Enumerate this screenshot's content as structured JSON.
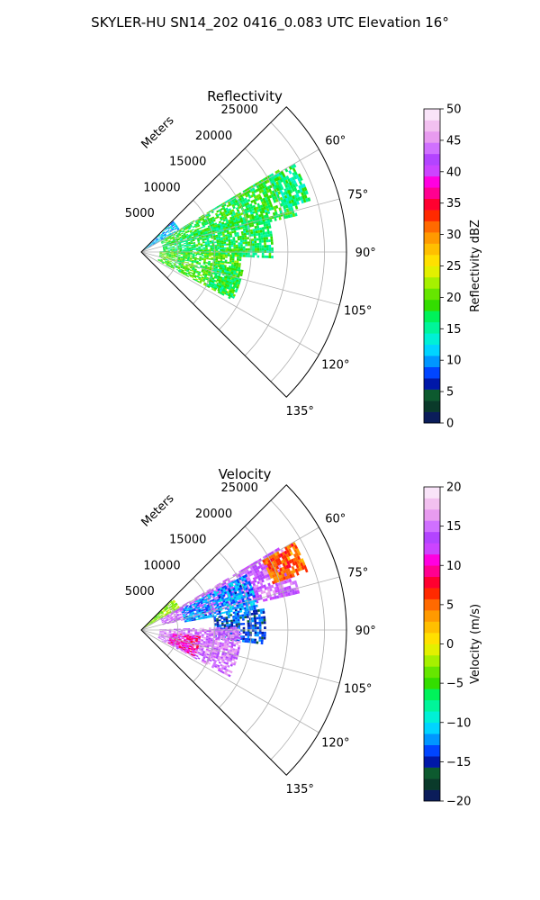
{
  "figure": {
    "title": "SKYLER-HU  SN14_202  0416_0.083 UTC Elevation 16°"
  },
  "chart_data": [
    {
      "type": "heatmap",
      "subtype": "polar-sector",
      "title": "Reflectivity",
      "range_label": "Meters",
      "range_ticks": [
        "5000",
        "10000",
        "15000",
        "20000",
        "25000"
      ],
      "range_values": [
        5000,
        10000,
        15000,
        20000,
        25000
      ],
      "range_max": 28000,
      "azimuth_ticks": [
        "60°",
        "75°",
        "90°",
        "105°",
        "120°",
        "135°"
      ],
      "azimuth_values": [
        60,
        75,
        90,
        105,
        120,
        135
      ],
      "azimuth_range": [
        45,
        135
      ],
      "grid": true,
      "colorbar": {
        "label": "Reflectivity dBZ",
        "vmin": 0,
        "vmax": 50,
        "ticks": [
          "0",
          "5",
          "10",
          "15",
          "20",
          "25",
          "30",
          "35",
          "40",
          "45",
          "50"
        ],
        "tick_values": [
          0,
          5,
          10,
          15,
          20,
          25,
          30,
          35,
          40,
          45,
          50
        ],
        "colors": [
          "#0b1d5a",
          "#0a3a2a",
          "#0d5a2f",
          "#0018a8",
          "#0045ff",
          "#0096ff",
          "#00d4ff",
          "#00f0d6",
          "#00f59a",
          "#00f25a",
          "#33dd00",
          "#66e600",
          "#a6f000",
          "#e3f000",
          "#ffe000",
          "#ffbf00",
          "#ff9a00",
          "#ff6a00",
          "#ff2a00",
          "#ff0030",
          "#ff0090",
          "#ff00e0",
          "#cc44ff",
          "#b344ff",
          "#d070ff",
          "#e89bf0",
          "#f2c0f0",
          "#f9e4f9"
        ]
      },
      "echo_regions": [
        {
          "az_range": [
            59,
            76
          ],
          "r_range": [
            3000,
            22000
          ],
          "value": 18
        },
        {
          "az_range": [
            70,
            92
          ],
          "r_range": [
            3000,
            18000
          ],
          "value": 17
        },
        {
          "az_range": [
            88,
            118
          ],
          "r_range": [
            2500,
            13500
          ],
          "value": 19
        },
        {
          "az_range": [
            100,
            116
          ],
          "r_range": [
            10000,
            14000
          ],
          "value": 17
        },
        {
          "az_range": [
            46,
            60
          ],
          "r_range": [
            0,
            6000
          ],
          "value": 11
        },
        {
          "az_range": [
            60,
            73
          ],
          "r_range": [
            20000,
            24000
          ],
          "value": 16
        }
      ]
    },
    {
      "type": "heatmap",
      "subtype": "polar-sector",
      "title": "Velocity",
      "range_label": "Meters",
      "range_ticks": [
        "5000",
        "10000",
        "15000",
        "20000",
        "25000"
      ],
      "range_values": [
        5000,
        10000,
        15000,
        20000,
        25000
      ],
      "range_max": 28000,
      "azimuth_ticks": [
        "60°",
        "75°",
        "90°",
        "105°",
        "120°",
        "135°"
      ],
      "azimuth_values": [
        60,
        75,
        90,
        105,
        120,
        135
      ],
      "azimuth_range": [
        45,
        135
      ],
      "grid": true,
      "colorbar": {
        "label": "Velocity (m/s)",
        "vmin": -20,
        "vmax": 20,
        "ticks": [
          "−20",
          "−15",
          "−10",
          "−5",
          "0",
          "5",
          "10",
          "15",
          "20"
        ],
        "tick_values": [
          -20,
          -15,
          -10,
          -5,
          0,
          5,
          10,
          15,
          20
        ],
        "colors": [
          "#0b1d5a",
          "#0a3a2a",
          "#0d5a2f",
          "#0018a8",
          "#0045ff",
          "#0096ff",
          "#00d4ff",
          "#00f0d6",
          "#00f59a",
          "#00f25a",
          "#33dd00",
          "#66e600",
          "#a6f000",
          "#e3f000",
          "#ffe000",
          "#ffbf00",
          "#ff9a00",
          "#ff6a00",
          "#ff2a00",
          "#ff0030",
          "#ff0090",
          "#ff00e0",
          "#cc44ff",
          "#b344ff",
          "#d070ff",
          "#e89bf0",
          "#f2c0f0",
          "#f9e4f9"
        ]
      },
      "echo_regions": [
        {
          "az_range": [
            59,
            76
          ],
          "r_range": [
            3000,
            22000
          ],
          "value": 14
        },
        {
          "az_range": [
            62,
            80
          ],
          "r_range": [
            6000,
            16000
          ],
          "value": -12
        },
        {
          "az_range": [
            80,
            96
          ],
          "r_range": [
            10000,
            17000
          ],
          "value": -14
        },
        {
          "az_range": [
            88,
            118
          ],
          "r_range": [
            2500,
            13500
          ],
          "value": 15
        },
        {
          "az_range": [
            96,
            116
          ],
          "r_range": [
            4000,
            8000
          ],
          "value": 10
        },
        {
          "az_range": [
            46,
            60
          ],
          "r_range": [
            0,
            6000
          ],
          "value": -3
        },
        {
          "az_range": [
            60,
            70
          ],
          "r_range": [
            19000,
            24000
          ],
          "value": 5
        }
      ]
    }
  ]
}
